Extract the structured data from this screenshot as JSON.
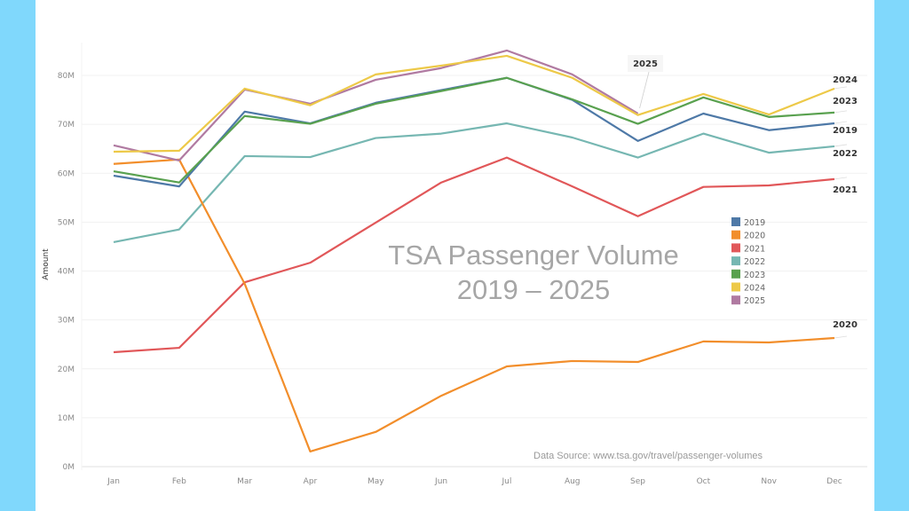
{
  "chart_data": {
    "type": "line",
    "title": "TSA Passenger Volume",
    "subtitle": "2019 – 2025",
    "xlabel": "",
    "ylabel": "Amount",
    "source": "Data Source:  www.tsa.gov/travel/passenger-volumes",
    "categories": [
      "Jan",
      "Feb",
      "Mar",
      "Apr",
      "May",
      "Jun",
      "Jul",
      "Aug",
      "Sep",
      "Oct",
      "Nov",
      "Dec"
    ],
    "yticks": [
      {
        "value": 0,
        "label": "0M"
      },
      {
        "value": 10,
        "label": "10M"
      },
      {
        "value": 20,
        "label": "20M"
      },
      {
        "value": 30,
        "label": "30M"
      },
      {
        "value": 40,
        "label": "40M"
      },
      {
        "value": 50,
        "label": "50M"
      },
      {
        "value": 60,
        "label": "60M"
      },
      {
        "value": 70,
        "label": "70M"
      },
      {
        "value": 80,
        "label": "80M"
      }
    ],
    "ylim": [
      0,
      80
    ],
    "y_unit": "millions of passengers",
    "grid": true,
    "legend_position": "center-right",
    "series": [
      {
        "name": "2019",
        "color": "#4e79a7",
        "end_label": "2019",
        "values": [
          59.5,
          57.3,
          72.6,
          70.2,
          74.4,
          77.0,
          79.5,
          75.0,
          66.6,
          72.2,
          68.8,
          70.2
        ]
      },
      {
        "name": "2020",
        "color": "#f28e2b",
        "end_label": "2020",
        "values": [
          61.9,
          62.8,
          37.4,
          3.1,
          7.1,
          14.5,
          20.5,
          21.6,
          21.4,
          25.6,
          25.4,
          26.3
        ]
      },
      {
        "name": "2021",
        "color": "#e15759",
        "end_label": "2021",
        "values": [
          23.4,
          24.3,
          37.7,
          41.7,
          49.9,
          58.1,
          63.2,
          57.3,
          51.2,
          57.2,
          57.5,
          58.8
        ]
      },
      {
        "name": "2022",
        "color": "#76b7b2",
        "end_label": "2022",
        "values": [
          45.9,
          48.5,
          63.5,
          63.3,
          67.2,
          68.1,
          70.2,
          67.3,
          63.2,
          68.1,
          64.2,
          65.5
        ]
      },
      {
        "name": "2023",
        "color": "#59a14f",
        "end_label": "2023",
        "values": [
          60.4,
          58.1,
          71.7,
          70.1,
          74.2,
          76.8,
          79.5,
          75.1,
          70.1,
          75.5,
          71.5,
          72.4
        ]
      },
      {
        "name": "2024",
        "color": "#edc948",
        "end_label": "2024",
        "values": [
          64.4,
          64.6,
          77.3,
          73.9,
          80.2,
          82.0,
          84.0,
          79.5,
          71.9,
          76.2,
          72.0,
          77.3
        ]
      },
      {
        "name": "2025",
        "color": "#b07aa1",
        "end_label": "2025",
        "values": [
          65.7,
          62.6,
          77.1,
          74.2,
          79.1,
          81.5,
          85.1,
          80.2,
          72.2,
          null,
          null,
          null
        ]
      }
    ]
  }
}
